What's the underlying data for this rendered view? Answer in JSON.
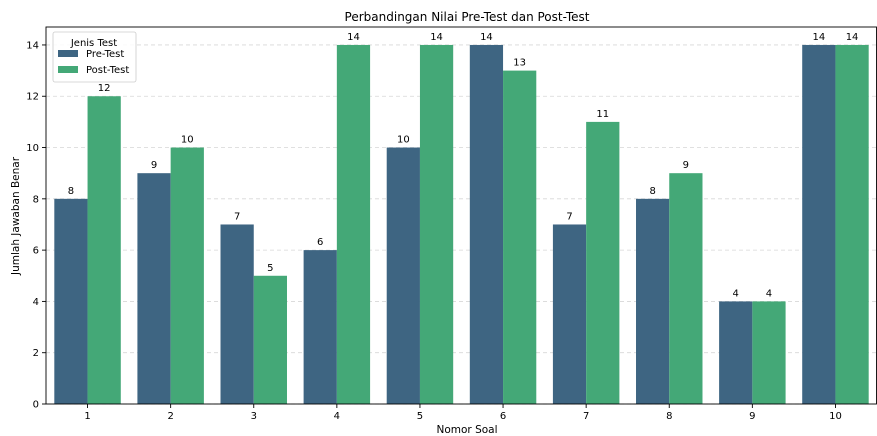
{
  "chart_data": {
    "type": "bar",
    "title": "Perbandingan Nilai Pre-Test dan Post-Test",
    "xlabel": "Nomor Soal",
    "ylabel": "Jumlah Jawaban Benar",
    "categories": [
      "1",
      "2",
      "3",
      "4",
      "5",
      "6",
      "7",
      "8",
      "9",
      "10"
    ],
    "series": [
      {
        "name": "Pre-Test",
        "color": "#3e6582",
        "values": [
          8,
          9,
          7,
          6,
          10,
          14,
          7,
          8,
          4,
          14
        ]
      },
      {
        "name": "Post-Test",
        "color": "#44a877",
        "values": [
          12,
          10,
          5,
          14,
          14,
          13,
          11,
          9,
          4,
          14
        ]
      }
    ],
    "ylim": [
      0,
      14.7
    ],
    "yticks": [
      0,
      2,
      4,
      6,
      8,
      10,
      12,
      14
    ],
    "grid": "y-dashed",
    "legend": {
      "title": "Jenis Test",
      "placement": "top-left"
    },
    "data_labels": true
  }
}
